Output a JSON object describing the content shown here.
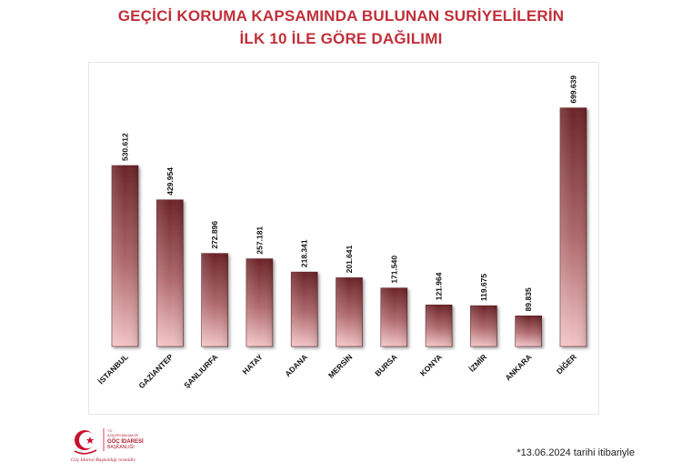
{
  "header": {
    "title_line1": "GEÇİCİ KORUMA KAPSAMINDA BULUNAN SURİYELİLERİN",
    "title_line2": "İLK 10 İLE GÖRE DAĞILIMI"
  },
  "footer": {
    "note": "*13.06.2024 tarihi itibariyle",
    "logo_line1": "T.C.",
    "logo_line2": "İÇİŞLERİ BAKANLIĞI",
    "logo_line3": "GÖÇ İDARESİ",
    "logo_line4": "BAŞKANLIĞI",
    "logo_slogan": "Göç İdaresi Başkanlığı resmidir."
  },
  "colors": {
    "title": "#c0303a",
    "bar_top": "#6b2327",
    "bar_bottom": "#f2c4c6"
  },
  "chart_data": {
    "type": "bar",
    "title": "GEÇİCİ KORUMA KAPSAMINDA BULUNAN SURİYELİLERİN İLK 10 İLE GÖRE DAĞILIMI",
    "categories": [
      "İSTANBUL",
      "GAZİANTEP",
      "ŞANLIURFA",
      "HATAY",
      "ADANA",
      "MERSİN",
      "BURSA",
      "KONYA",
      "İZMİR",
      "ANKARA",
      "DİĞER"
    ],
    "values": [
      530612,
      429954,
      272896,
      257181,
      218341,
      201641,
      171540,
      121964,
      119675,
      89835,
      699639
    ],
    "value_labels": [
      "530.612",
      "429.954",
      "272.896",
      "257.181",
      "218.341",
      "201.641",
      "171.540",
      "121.964",
      "119.675",
      "89.835",
      "699.639"
    ],
    "ylim": [
      0,
      800000
    ],
    "grid": false,
    "legend": "none"
  }
}
